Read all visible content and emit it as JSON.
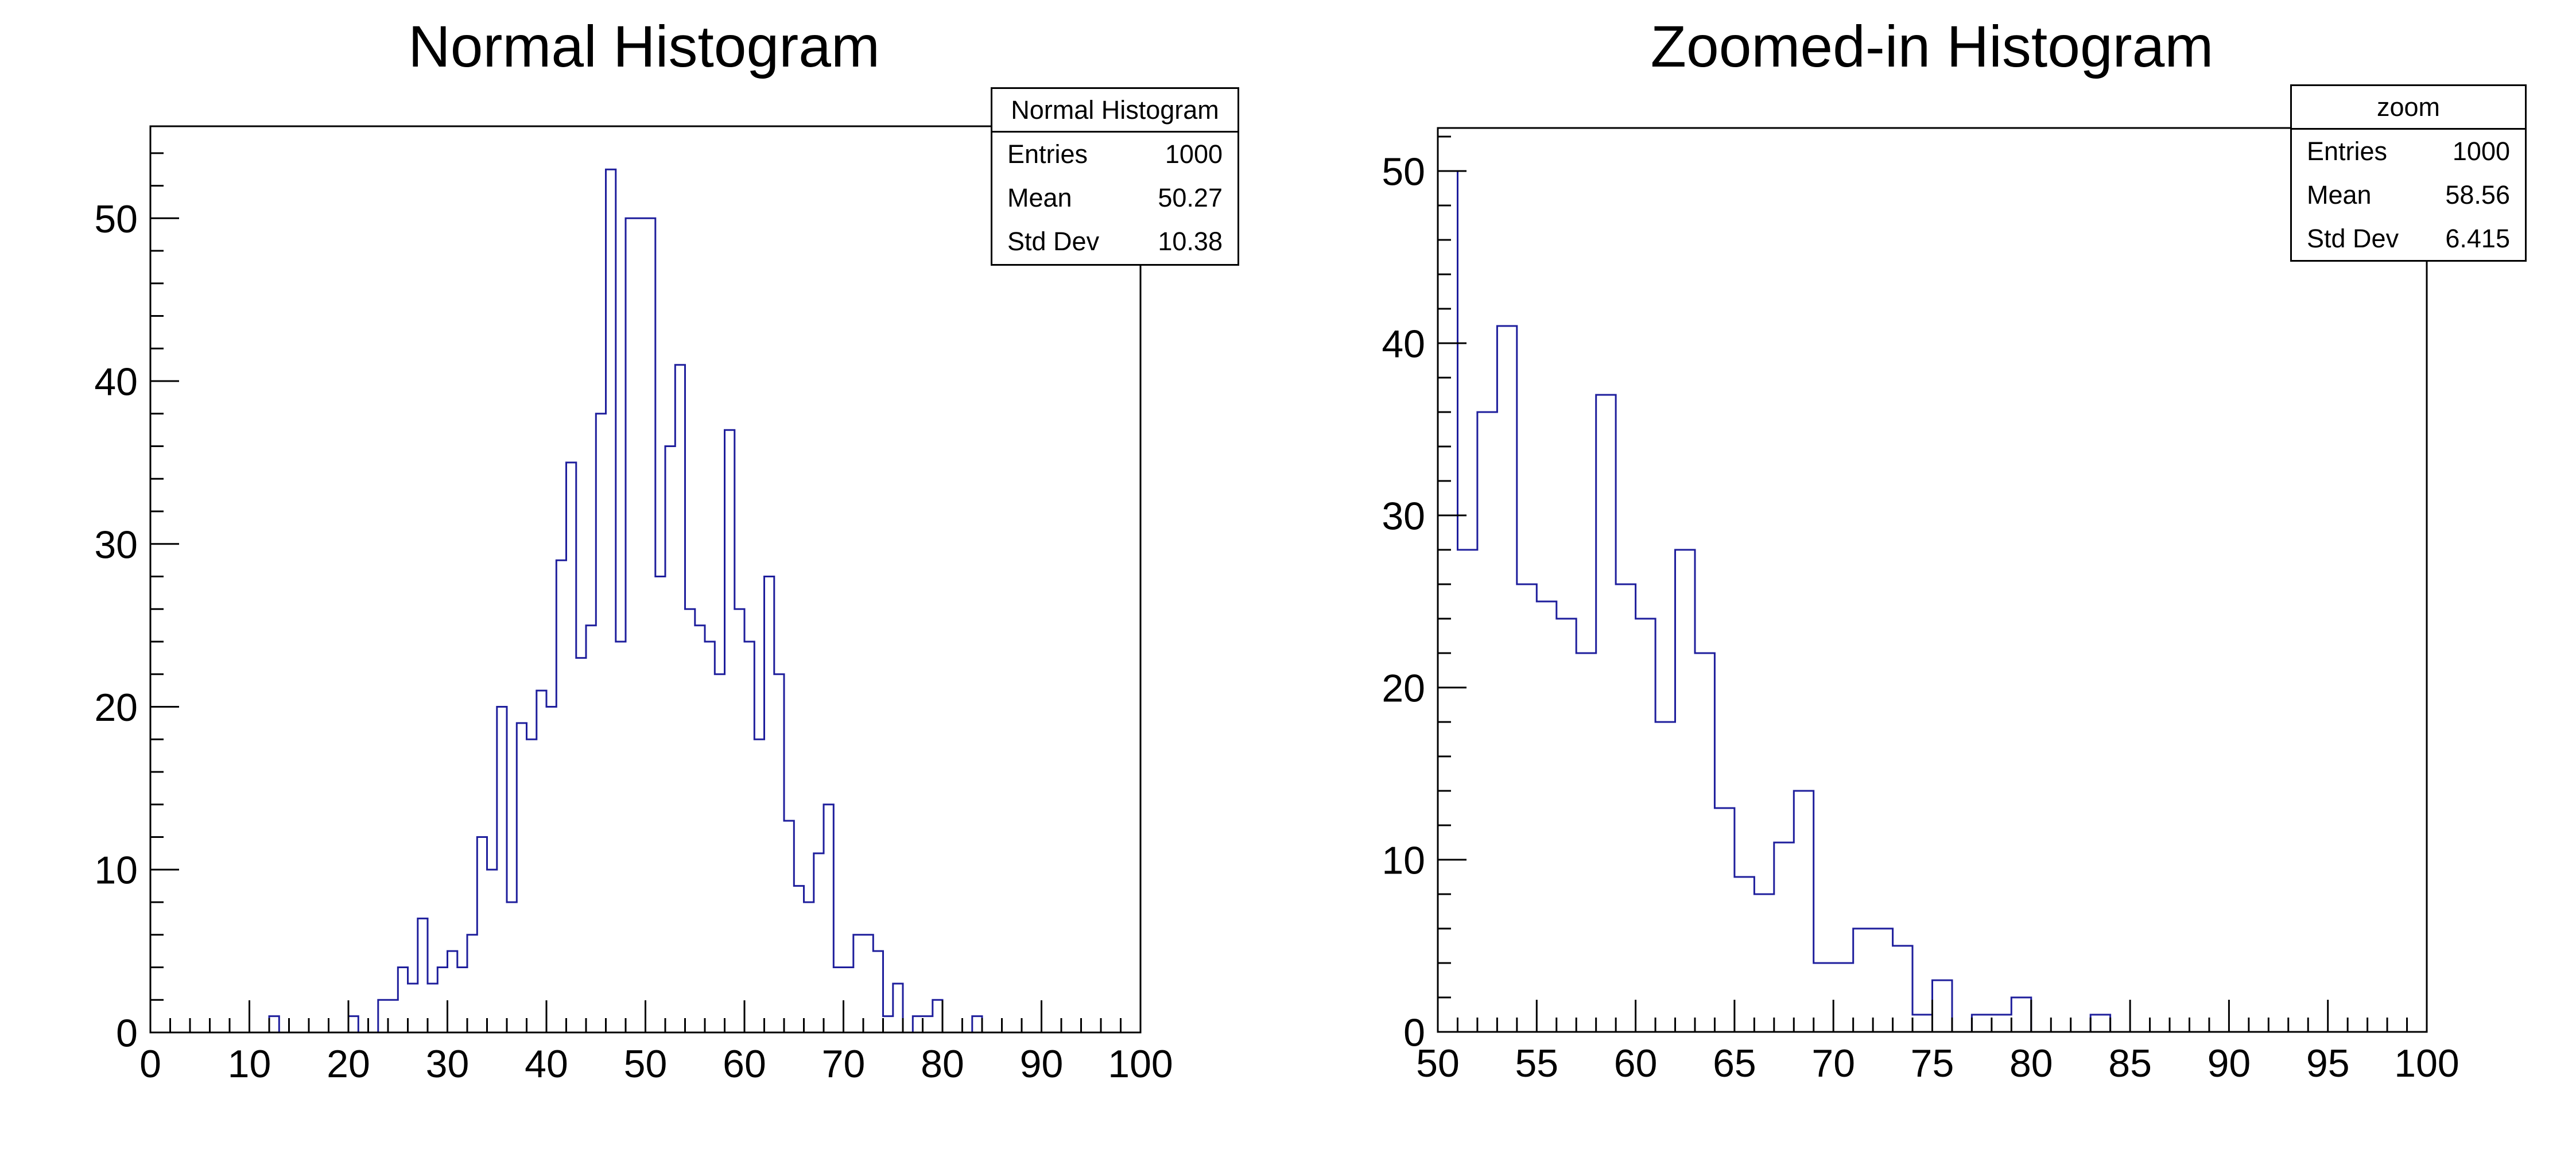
{
  "page_background": "#ffffff",
  "chart_data": [
    {
      "type": "bar",
      "subtype": "histogram-step",
      "title": "Normal Histogram",
      "xlabel": "",
      "ylabel": "",
      "grid": false,
      "legend_position": "none",
      "x_start": 0,
      "bin_width": 1,
      "xlim": [
        0,
        100
      ],
      "ylim": [
        0,
        55.65
      ],
      "x_major_step": 10,
      "x_minor_step": 2,
      "y_major_step": 10,
      "y_minor_step": 2,
      "x_tick_labels": [
        "0",
        "10",
        "20",
        "30",
        "40",
        "50",
        "60",
        "70",
        "80",
        "90",
        "100"
      ],
      "y_tick_labels": [
        "0",
        "10",
        "20",
        "30",
        "40",
        "50"
      ],
      "line_color": "#1e1e9c",
      "axis_color": "#000000",
      "values": [
        0,
        0,
        0,
        0,
        0,
        0,
        0,
        0,
        0,
        0,
        0,
        0,
        1,
        0,
        0,
        0,
        0,
        0,
        0,
        0,
        1,
        0,
        0,
        2,
        2,
        4,
        3,
        7,
        3,
        4,
        5,
        4,
        6,
        12,
        10,
        20,
        8,
        19,
        18,
        21,
        20,
        29,
        35,
        23,
        25,
        38,
        53,
        24,
        50,
        50,
        50,
        28,
        36,
        41,
        26,
        25,
        24,
        22,
        37,
        26,
        24,
        18,
        28,
        22,
        13,
        9,
        8,
        11,
        14,
        4,
        4,
        6,
        6,
        5,
        1,
        3,
        0,
        1,
        1,
        2,
        0,
        0,
        0,
        1,
        0,
        0,
        0,
        0,
        0,
        0,
        0,
        0,
        0,
        0,
        0,
        0,
        0,
        0,
        0,
        0
      ],
      "stats": {
        "title": "Normal Histogram",
        "rows": [
          {
            "label": "Entries",
            "value": "1000"
          },
          {
            "label": "Mean",
            "value": "50.27"
          },
          {
            "label": "Std Dev",
            "value": "10.38"
          }
        ]
      }
    },
    {
      "type": "bar",
      "subtype": "histogram-step",
      "title": "Zoomed-in Histogram",
      "xlabel": "",
      "ylabel": "",
      "grid": false,
      "legend_position": "none",
      "x_start": 50,
      "bin_width": 1,
      "xlim": [
        50,
        100
      ],
      "ylim": [
        0,
        52.5
      ],
      "x_major_step": 5,
      "x_minor_step": 1,
      "y_major_step": 10,
      "y_minor_step": 2,
      "x_tick_labels": [
        "50",
        "55",
        "60",
        "65",
        "70",
        "75",
        "80",
        "85",
        "90",
        "95",
        "100"
      ],
      "y_tick_labels": [
        "0",
        "10",
        "20",
        "30",
        "40",
        "50"
      ],
      "line_color": "#1e1e9c",
      "axis_color": "#000000",
      "values": [
        50,
        28,
        36,
        41,
        26,
        25,
        24,
        22,
        37,
        26,
        24,
        18,
        28,
        22,
        13,
        9,
        8,
        11,
        14,
        4,
        4,
        6,
        6,
        5,
        1,
        3,
        0,
        1,
        1,
        2,
        0,
        0,
        0,
        1,
        0,
        0,
        0,
        0,
        0,
        0,
        0,
        0,
        0,
        0,
        0,
        0,
        0,
        0,
        0,
        0
      ],
      "stats": {
        "title": "zoom",
        "rows": [
          {
            "label": "Entries",
            "value": "1000"
          },
          {
            "label": "Mean",
            "value": "58.56"
          },
          {
            "label": "Std Dev",
            "value": "6.415"
          }
        ]
      }
    }
  ]
}
